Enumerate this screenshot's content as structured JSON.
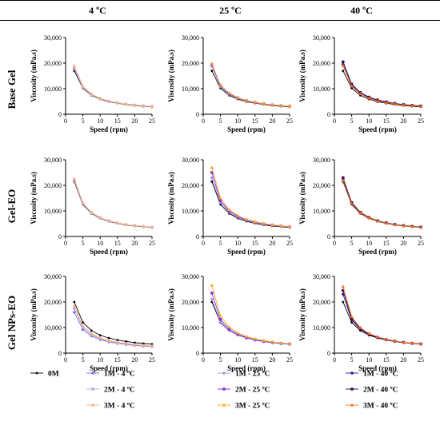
{
  "headers": [
    "4 ºC",
    "25 ºC",
    "40 ºC"
  ],
  "row_labels": [
    "Base Gel",
    "Gel-EO",
    "Gel NPs-EO"
  ],
  "colors": {
    "0M": "#000000",
    "1M - 4 ºC": "#6a72e6",
    "2M - 4 ºC": "#c8a0e8",
    "3M - 4 ºC": "#f3b37a",
    "1M - 25 ºC": "#9a93e8",
    "2M - 25 ºC": "#8a2be2",
    "3M - 25 ºC": "#f5a623",
    "1M - 40 ºC": "#2a1a8c",
    "2M - 40 ºC": "#3a0a55",
    "3M - 40 ºC": "#f07020"
  },
  "legend": [
    [
      "0M"
    ],
    [
      "1M - 4 ºC",
      "2M - 4 ºC",
      "3M - 4 ºC"
    ],
    [
      "1M - 25 ºC",
      "2M - 25 ºC",
      "3M - 25 ºC"
    ],
    [
      "1M - 40 ºC",
      "2M - 40 ºC",
      "3M - 40 ºC"
    ]
  ],
  "chart_data": [
    {
      "type": "line",
      "row": "Base Gel",
      "col": "4 ºC",
      "xlabel": "Speed (rpm)",
      "ylabel": "Viscosity (mPa.s)",
      "xlim": [
        0,
        25
      ],
      "ylim": [
        0,
        30000
      ],
      "xticks": [
        0,
        5,
        10,
        15,
        20,
        25
      ],
      "yticks": [
        "0",
        "10,000",
        "20,000",
        "30,000"
      ],
      "x": [
        2.5,
        5,
        7.5,
        10,
        12.5,
        15,
        17.5,
        20,
        22.5,
        25
      ],
      "series": [
        {
          "name": "0M",
          "values": [
            17000,
            10200,
            7400,
            5900,
            4900,
            4300,
            3800,
            3400,
            3100,
            2900
          ]
        },
        {
          "name": "1M - 4 ºC",
          "values": [
            17600,
            10400,
            7500,
            6000,
            5000,
            4400,
            3900,
            3500,
            3200,
            2950
          ]
        },
        {
          "name": "2M - 4 ºC",
          "values": [
            18200,
            10600,
            7700,
            6100,
            5100,
            4450,
            3950,
            3550,
            3250,
            3000
          ]
        },
        {
          "name": "3M - 4 ºC",
          "values": [
            19000,
            10900,
            7900,
            6200,
            5200,
            4500,
            4000,
            3600,
            3300,
            3050
          ]
        }
      ]
    },
    {
      "type": "line",
      "row": "Base Gel",
      "col": "25 ºC",
      "xlabel": "Speed (rpm)",
      "ylabel": "Viscosity (mPa.s)",
      "xlim": [
        0,
        25
      ],
      "ylim": [
        0,
        30000
      ],
      "xticks": [
        0,
        5,
        10,
        15,
        20,
        25
      ],
      "yticks": [
        "0",
        "10,000",
        "20,000",
        "30,000"
      ],
      "x": [
        2.5,
        5,
        7.5,
        10,
        12.5,
        15,
        17.5,
        20,
        22.5,
        25
      ],
      "series": [
        {
          "name": "0M",
          "values": [
            17000,
            10200,
            7400,
            5900,
            4900,
            4300,
            3800,
            3400,
            3100,
            2900
          ]
        },
        {
          "name": "1M - 25 ºC",
          "values": [
            18800,
            10800,
            7800,
            6200,
            5100,
            4450,
            3950,
            3550,
            3250,
            3000
          ]
        },
        {
          "name": "2M - 25 ºC",
          "values": [
            19400,
            11200,
            8100,
            6400,
            5300,
            4600,
            4050,
            3650,
            3350,
            3100
          ]
        },
        {
          "name": "3M - 25 ºC",
          "values": [
            19800,
            11400,
            8300,
            6500,
            5400,
            4700,
            4100,
            3700,
            3400,
            3150
          ]
        }
      ]
    },
    {
      "type": "line",
      "row": "Base Gel",
      "col": "40 ºC",
      "xlabel": "Speed (rpm)",
      "ylabel": "Viscosity (mPa.s)",
      "xlim": [
        0,
        25
      ],
      "ylim": [
        0,
        30000
      ],
      "xticks": [
        0,
        5,
        10,
        15,
        20,
        25
      ],
      "yticks": [
        "0",
        "10,000",
        "20,000",
        "30,000"
      ],
      "x": [
        2.5,
        5,
        7.5,
        10,
        12.5,
        15,
        17.5,
        20,
        22.5,
        25
      ],
      "series": [
        {
          "name": "0M",
          "values": [
            17000,
            10200,
            7400,
            5900,
            4900,
            4300,
            3800,
            3400,
            3100,
            2900
          ]
        },
        {
          "name": "1M - 40 ºC",
          "values": [
            19500,
            11300,
            8200,
            6500,
            5400,
            4700,
            4150,
            3700,
            3400,
            3150
          ]
        },
        {
          "name": "2M - 40 ºC",
          "values": [
            20500,
            11800,
            8500,
            6700,
            5600,
            4850,
            4250,
            3800,
            3500,
            3250
          ]
        },
        {
          "name": "3M - 40 ºC",
          "values": [
            19000,
            11000,
            8000,
            6300,
            5250,
            4550,
            4050,
            3650,
            3350,
            3100
          ]
        }
      ]
    },
    {
      "type": "line",
      "row": "Gel-EO",
      "col": "4 ºC",
      "xlabel": "Speed (rpm)",
      "ylabel": "Viscosity (mPa.s)",
      "xlim": [
        0,
        25
      ],
      "ylim": [
        0,
        30000
      ],
      "xticks": [
        0,
        5,
        10,
        15,
        20,
        25
      ],
      "yticks": [
        "0",
        "10,000",
        "20,000",
        "30,000"
      ],
      "x": [
        2.5,
        5,
        7.5,
        10,
        12.5,
        15,
        17.5,
        20,
        22.5,
        25
      ],
      "series": [
        {
          "name": "0M",
          "values": [
            21500,
            12500,
            9000,
            7100,
            5900,
            5100,
            4500,
            4100,
            3800,
            3500
          ]
        },
        {
          "name": "1M - 4 ºC",
          "values": [
            21800,
            12700,
            9100,
            7200,
            6000,
            5200,
            4600,
            4150,
            3850,
            3550
          ]
        },
        {
          "name": "2M - 4 ºC",
          "values": [
            22200,
            12900,
            9300,
            7300,
            6100,
            5250,
            4650,
            4200,
            3900,
            3600
          ]
        },
        {
          "name": "3M - 4 ºC",
          "values": [
            22600,
            13100,
            9400,
            7400,
            6150,
            5300,
            4700,
            4250,
            3950,
            3650
          ]
        }
      ]
    },
    {
      "type": "line",
      "row": "Gel-EO",
      "col": "25 ºC",
      "xlabel": "Speed (rpm)",
      "ylabel": "Viscosity (mPa.s)",
      "xlim": [
        0,
        25
      ],
      "ylim": [
        0,
        30000
      ],
      "xticks": [
        0,
        5,
        10,
        15,
        20,
        25
      ],
      "yticks": [
        "0",
        "10,000",
        "20,000",
        "30,000"
      ],
      "x": [
        2.5,
        5,
        7.5,
        10,
        12.5,
        15,
        17.5,
        20,
        22.5,
        25
      ],
      "series": [
        {
          "name": "0M",
          "values": [
            21500,
            12500,
            9000,
            7100,
            5900,
            5100,
            4500,
            4100,
            3800,
            3500
          ]
        },
        {
          "name": "1M - 25 ºC",
          "values": [
            23000,
            13300,
            9500,
            7500,
            6200,
            5350,
            4750,
            4300,
            3950,
            3650
          ]
        },
        {
          "name": "2M - 25 ºC",
          "values": [
            25000,
            14000,
            10000,
            7800,
            6450,
            5550,
            4900,
            4400,
            4050,
            3750
          ]
        },
        {
          "name": "3M - 25 ºC",
          "values": [
            27000,
            15000,
            10500,
            8200,
            6700,
            5750,
            5050,
            4550,
            4150,
            3850
          ]
        }
      ]
    },
    {
      "type": "line",
      "row": "Gel-EO",
      "col": "40 ºC",
      "xlabel": "Speed (rpm)",
      "ylabel": "Viscosity (mPa.s)",
      "xlim": [
        0,
        25
      ],
      "ylim": [
        0,
        30000
      ],
      "xticks": [
        0,
        5,
        10,
        15,
        20,
        25
      ],
      "yticks": [
        "0",
        "10,000",
        "20,000",
        "30,000"
      ],
      "x": [
        2.5,
        5,
        7.5,
        10,
        12.5,
        15,
        17.5,
        20,
        22.5,
        25
      ],
      "series": [
        {
          "name": "0M",
          "values": [
            21500,
            12500,
            9000,
            7100,
            5900,
            5100,
            4500,
            4100,
            3800,
            3500
          ]
        },
        {
          "name": "1M - 40 ºC",
          "values": [
            22500,
            13000,
            9300,
            7300,
            6050,
            5250,
            4650,
            4200,
            3900,
            3600
          ]
        },
        {
          "name": "2M - 40 ºC",
          "values": [
            23000,
            13300,
            9500,
            7450,
            6150,
            5350,
            4700,
            4250,
            3950,
            3650
          ]
        },
        {
          "name": "3M - 40 ºC",
          "values": [
            22000,
            12800,
            9200,
            7250,
            6000,
            5200,
            4600,
            4150,
            3850,
            3550
          ]
        }
      ]
    },
    {
      "type": "line",
      "row": "Gel NPs-EO",
      "col": "4 ºC",
      "xlabel": "Speed (rpm)",
      "ylabel": "Viscosity (mPa.s)",
      "xlim": [
        0,
        25
      ],
      "ylim": [
        0,
        30000
      ],
      "xticks": [
        0,
        5,
        10,
        15,
        20,
        25
      ],
      "yticks": [
        "0",
        "10,000",
        "20,000",
        "30,000"
      ],
      "x": [
        2.5,
        5,
        7.5,
        10,
        12.5,
        15,
        17.5,
        20,
        22.5,
        25
      ],
      "series": [
        {
          "name": "0M",
          "values": [
            20000,
            12000,
            8800,
            7000,
            5900,
            5100,
            4550,
            4100,
            3750,
            3500
          ]
        },
        {
          "name": "1M - 4 ºC",
          "values": [
            16000,
            9200,
            6700,
            5300,
            4400,
            3800,
            3350,
            3000,
            2750,
            2550
          ]
        },
        {
          "name": "2M - 4 ºC",
          "values": [
            17500,
            10000,
            7200,
            5700,
            4700,
            4050,
            3600,
            3200,
            2950,
            2700
          ]
        },
        {
          "name": "3M - 4 ºC",
          "values": [
            18500,
            10600,
            7600,
            6000,
            4950,
            4250,
            3750,
            3350,
            3050,
            2850
          ]
        }
      ]
    },
    {
      "type": "line",
      "row": "Gel NPs-EO",
      "col": "25 ºC",
      "xlabel": "Speed (rpm)",
      "ylabel": "Viscosity (mPa.s)",
      "xlim": [
        0,
        25
      ],
      "ylim": [
        0,
        30000
      ],
      "xticks": [
        0,
        5,
        10,
        15,
        20,
        25
      ],
      "yticks": [
        "0",
        "10,000",
        "20,000",
        "30,000"
      ],
      "x": [
        2.5,
        5,
        7.5,
        10,
        12.5,
        15,
        17.5,
        20,
        22.5,
        25
      ],
      "series": [
        {
          "name": "0M",
          "values": [
            20000,
            12000,
            8800,
            7000,
            5900,
            5100,
            4550,
            4100,
            3750,
            3500
          ]
        },
        {
          "name": "1M - 25 ºC",
          "values": [
            21000,
            12300,
            8900,
            7050,
            5850,
            5050,
            4450,
            4000,
            3700,
            3450
          ]
        },
        {
          "name": "2M - 25 ºC",
          "values": [
            23500,
            13200,
            9400,
            7400,
            6100,
            5250,
            4600,
            4150,
            3800,
            3550
          ]
        },
        {
          "name": "3M - 25 ºC",
          "values": [
            26500,
            14500,
            10200,
            7900,
            6500,
            5550,
            4850,
            4350,
            3950,
            3650
          ]
        }
      ]
    },
    {
      "type": "line",
      "row": "Gel NPs-EO",
      "col": "40 ºC",
      "xlabel": "Speed (rpm)",
      "ylabel": "Viscosity (mPa.s)",
      "xlim": [
        0,
        25
      ],
      "ylim": [
        0,
        30000
      ],
      "xticks": [
        0,
        5,
        10,
        15,
        20,
        25
      ],
      "yticks": [
        "0",
        "10,000",
        "20,000",
        "30,000"
      ],
      "x": [
        2.5,
        5,
        7.5,
        10,
        12.5,
        15,
        17.5,
        20,
        22.5,
        25
      ],
      "series": [
        {
          "name": "0M",
          "values": [
            20000,
            12000,
            8800,
            7000,
            5900,
            5100,
            4550,
            4100,
            3750,
            3500
          ]
        },
        {
          "name": "1M - 40 ºC",
          "values": [
            23000,
            13000,
            9300,
            7300,
            6050,
            5200,
            4600,
            4150,
            3800,
            3550
          ]
        },
        {
          "name": "2M - 40 ºC",
          "values": [
            24500,
            13600,
            9600,
            7500,
            6200,
            5300,
            4700,
            4200,
            3850,
            3600
          ]
        },
        {
          "name": "3M - 40 ºC",
          "values": [
            26000,
            14200,
            9900,
            7700,
            6350,
            5400,
            4750,
            4250,
            3900,
            3650
          ]
        }
      ]
    }
  ]
}
